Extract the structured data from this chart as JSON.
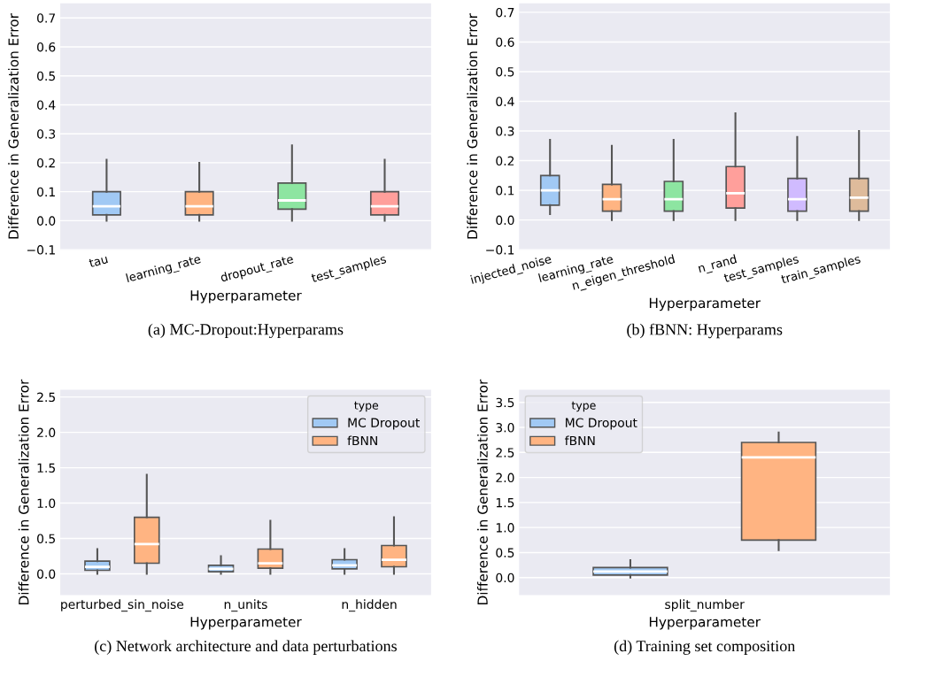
{
  "chart_data": [
    {
      "type": "box",
      "xlabel": "Hyperparameter",
      "ylabel": "Difference in Generalization Error",
      "annotations": [
        "(a) MC-Dropout:Hyperparams"
      ],
      "categories": [
        "tau",
        "learning_rate",
        "dropout_rate",
        "test_samples"
      ],
      "colors": [
        "#a1c9f4",
        "#ffb482",
        "#8de5a1",
        "#ff9f9b"
      ],
      "boxes": [
        {
          "low": 0.0,
          "q1": 0.02,
          "median": 0.05,
          "q3": 0.1,
          "high": 0.21
        },
        {
          "low": 0.0,
          "q1": 0.02,
          "median": 0.05,
          "q3": 0.1,
          "high": 0.2
        },
        {
          "low": 0.0,
          "q1": 0.04,
          "median": 0.07,
          "q3": 0.13,
          "high": 0.26
        },
        {
          "low": 0.0,
          "q1": 0.02,
          "median": 0.05,
          "q3": 0.1,
          "high": 0.21
        }
      ],
      "ylim": [
        -0.1,
        0.75
      ],
      "yticks": [
        {
          "value": -0.1,
          "label": "−0.1"
        },
        {
          "value": 0,
          "label": "0.0"
        },
        0.1,
        0.2,
        0.3,
        0.4,
        0.5,
        0.6,
        0.7
      ],
      "grid": "y"
    },
    {
      "type": "box",
      "xlabel": "Hyperparameter",
      "ylabel": "Difference in Generalization Error",
      "annotations": [
        "(b) fBNN: Hyperparams"
      ],
      "categories": [
        "injected_noise",
        "learning_rate",
        "n_eigen_threshold",
        "n_rand",
        "test_samples",
        "train_samples"
      ],
      "colors": [
        "#a1c9f4",
        "#ffb482",
        "#8de5a1",
        "#ff9f9b",
        "#d0bbff",
        "#debb9b"
      ],
      "boxes": [
        {
          "low": 0.02,
          "q1": 0.05,
          "median": 0.1,
          "q3": 0.15,
          "high": 0.27
        },
        {
          "low": 0.0,
          "q1": 0.03,
          "median": 0.07,
          "q3": 0.12,
          "high": 0.25
        },
        {
          "low": 0.0,
          "q1": 0.03,
          "median": 0.07,
          "q3": 0.13,
          "high": 0.27
        },
        {
          "low": 0.0,
          "q1": 0.04,
          "median": 0.09,
          "q3": 0.18,
          "high": 0.36
        },
        {
          "low": 0.0,
          "q1": 0.03,
          "median": 0.07,
          "q3": 0.14,
          "high": 0.28
        },
        {
          "low": 0.0,
          "q1": 0.03,
          "median": 0.075,
          "q3": 0.14,
          "high": 0.3
        }
      ],
      "ylim": [
        -0.1,
        0.73
      ],
      "yticks": [
        {
          "value": -0.1,
          "label": "−0.1"
        },
        {
          "value": 0,
          "label": "0.0"
        },
        0.1,
        0.2,
        0.3,
        0.4,
        0.5,
        0.6,
        0.7
      ],
      "grid": "y"
    },
    {
      "type": "box",
      "xlabel": "Hyperparameter",
      "ylabel": "Difference in Generalization Error",
      "annotations": [
        "(c) Network architecture and data perturbations"
      ],
      "categories": [
        "perturbed_sin_noise",
        "n_units",
        "n_hidden"
      ],
      "legend": "top right",
      "legend_title": "type",
      "series": [
        {
          "name": "MC Dropout",
          "color": "#a1c9f4",
          "boxes": [
            {
              "low": 0.0,
              "q1": 0.05,
              "median": 0.1,
              "q3": 0.18,
              "high": 0.35
            },
            {
              "low": 0.0,
              "q1": 0.03,
              "median": 0.07,
              "q3": 0.12,
              "high": 0.25
            },
            {
              "low": 0.0,
              "q1": 0.07,
              "median": 0.12,
              "q3": 0.2,
              "high": 0.35
            }
          ]
        },
        {
          "name": "fBNN",
          "color": "#ffb482",
          "boxes": [
            {
              "low": 0.0,
              "q1": 0.15,
              "median": 0.42,
              "q3": 0.8,
              "high": 1.4
            },
            {
              "low": 0.0,
              "q1": 0.08,
              "median": 0.15,
              "q3": 0.35,
              "high": 0.75
            },
            {
              "low": 0.0,
              "q1": 0.1,
              "median": 0.2,
              "q3": 0.4,
              "high": 0.8
            }
          ]
        }
      ],
      "ylim": [
        -0.3,
        2.6
      ],
      "yticks": [
        {
          "value": 0,
          "label": "0.0"
        },
        0.5,
        {
          "value": 1,
          "label": "1.0"
        },
        1.5,
        {
          "value": 2,
          "label": "2.0"
        },
        2.5
      ],
      "grid": "y"
    },
    {
      "type": "box",
      "xlabel": "Hyperparameter",
      "ylabel": "Difference in Generalization Error",
      "annotations": [
        "(d) Training set composition"
      ],
      "categories": [
        "split_number"
      ],
      "legend": "top left",
      "legend_title": "type",
      "series": [
        {
          "name": "MC Dropout",
          "color": "#a1c9f4",
          "boxes": [
            {
              "low": 0.0,
              "q1": 0.05,
              "median": 0.12,
              "q3": 0.2,
              "high": 0.35
            }
          ]
        },
        {
          "name": "fBNN",
          "color": "#ffb482",
          "boxes": [
            {
              "low": 0.55,
              "q1": 0.75,
              "median": 2.4,
              "q3": 2.7,
              "high": 2.9
            }
          ]
        }
      ],
      "ylim": [
        -0.35,
        3.75
      ],
      "yticks": [
        {
          "value": 0,
          "label": "0.0"
        },
        0.5,
        {
          "value": 1,
          "label": "1.0"
        },
        1.5,
        {
          "value": 2,
          "label": "2.0"
        },
        2.5,
        {
          "value": 3,
          "label": "3.0"
        },
        3.5
      ],
      "grid": "y"
    }
  ]
}
